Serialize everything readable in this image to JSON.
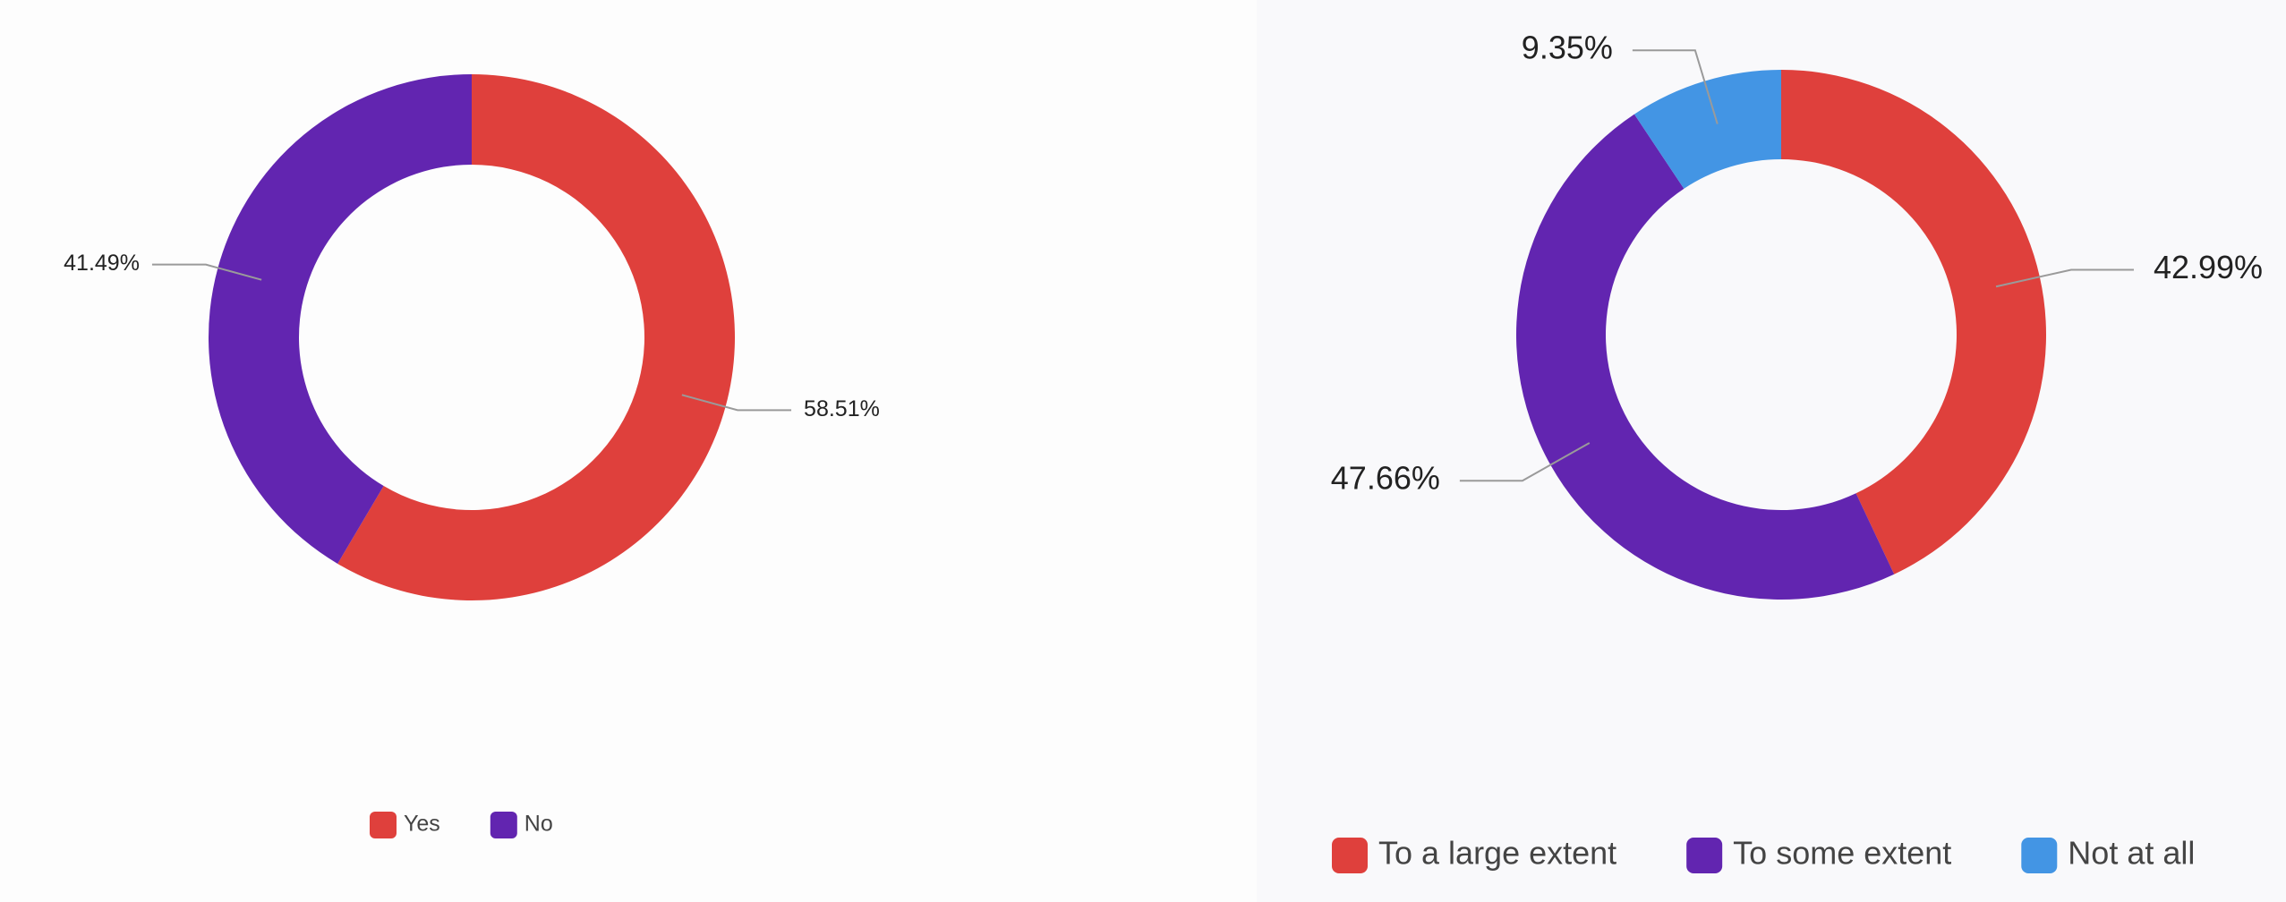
{
  "chart_data": [
    {
      "type": "pie",
      "donut": true,
      "categories": [
        "Yes",
        "No"
      ],
      "values": [
        58.51,
        41.49
      ],
      "data_labels": [
        "58.51%",
        "41.49%"
      ],
      "colors": [
        "#df403c",
        "#6225b0"
      ],
      "legend_position": "bottom"
    },
    {
      "type": "pie",
      "donut": true,
      "categories": [
        "To a large extent",
        "To some extent",
        "Not at all"
      ],
      "values": [
        42.99,
        47.66,
        9.35
      ],
      "data_labels": [
        "42.99%",
        "47.66%",
        "9.35%"
      ],
      "colors": [
        "#df403c",
        "#6225b0",
        "#4395e4"
      ],
      "legend_position": "bottom"
    }
  ]
}
